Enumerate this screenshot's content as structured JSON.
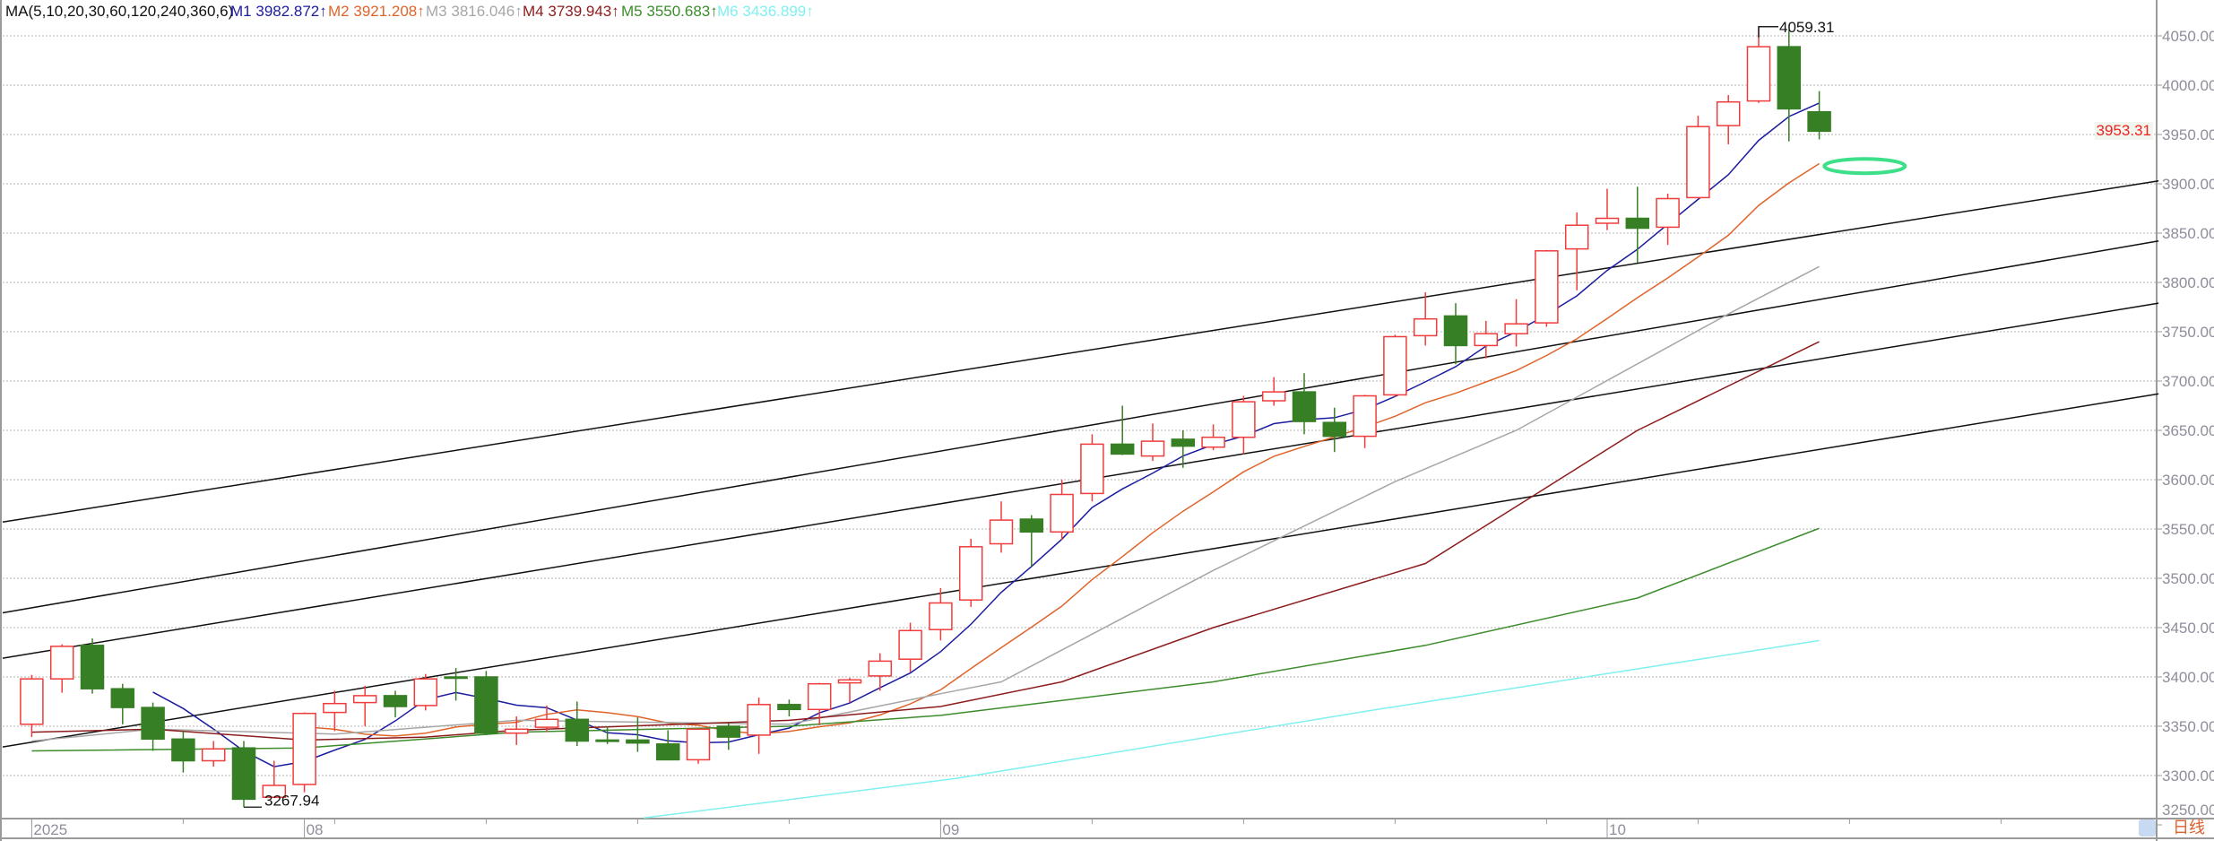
{
  "legend": {
    "title": "MA(5,10,20,30,60,120,240,360,6)",
    "items": [
      {
        "label": "M1",
        "value": "3982.872↑",
        "color": "#1c1ca0"
      },
      {
        "label": "M2",
        "value": "3921.208↑",
        "color": "#e0642a"
      },
      {
        "label": "M3",
        "value": "3816.046↑",
        "color": "#a6a6a6"
      },
      {
        "label": "M4",
        "value": "3739.943↑",
        "color": "#8c1c1c"
      },
      {
        "label": "M5",
        "value": "3550.683↑",
        "color": "#3c8c2c"
      },
      {
        "label": "M6",
        "value": "3436.899↑",
        "color": "#80f0f0"
      }
    ]
  },
  "period_label": "日线",
  "last_price_label": "3953.31",
  "chart_data": {
    "type": "candlestick",
    "ylim": [
      3250,
      4080
    ],
    "grid": true,
    "y_ticks": [
      "4050.00",
      "4000.00",
      "3950.00",
      "3900.00",
      "3850.00",
      "3800.00",
      "3750.00",
      "3700.00",
      "3650.00",
      "3600.00",
      "3550.00",
      "3500.00",
      "3450.00",
      "3400.00",
      "3350.00",
      "3300.00",
      "3250.00"
    ],
    "x_labels": [
      {
        "bar": 1,
        "label": "2025"
      },
      {
        "bar": 10,
        "label": "08"
      },
      {
        "bar": 31,
        "label": "09"
      },
      {
        "bar": 53,
        "label": "10"
      }
    ],
    "colors": {
      "up": "#f03c3c",
      "down": "#367f24",
      "trendline": "#111111",
      "highlight": "#3ddf88"
    },
    "ohlc_fields": [
      "open",
      "high",
      "low",
      "close"
    ],
    "candles": [
      [
        3352,
        3402,
        3339,
        3398
      ],
      [
        3398,
        3433,
        3384,
        3431
      ],
      [
        3432,
        3439,
        3383,
        3388
      ],
      [
        3388,
        3393,
        3352,
        3369
      ],
      [
        3369,
        3374,
        3325,
        3337
      ],
      [
        3337,
        3345,
        3303,
        3315
      ],
      [
        3315,
        3335,
        3309,
        3327
      ],
      [
        3328,
        3335,
        3267.94,
        3276
      ],
      [
        3278,
        3315,
        3278,
        3290
      ],
      [
        3291,
        3364,
        3283,
        3363
      ],
      [
        3364,
        3386,
        3345,
        3373
      ],
      [
        3374,
        3391,
        3350,
        3381
      ],
      [
        3381,
        3386,
        3359,
        3370
      ],
      [
        3371,
        3403,
        3366,
        3398
      ],
      [
        3400,
        3409,
        3376,
        3399
      ],
      [
        3400,
        3406,
        3341,
        3343
      ],
      [
        3343,
        3360,
        3331,
        3347
      ],
      [
        3349,
        3371,
        3344,
        3357
      ],
      [
        3357,
        3375,
        3330,
        3335
      ],
      [
        3336,
        3350,
        3332,
        3335
      ],
      [
        3336,
        3359,
        3324,
        3333
      ],
      [
        3332,
        3346,
        3316,
        3316
      ],
      [
        3316,
        3347,
        3312,
        3347
      ],
      [
        3350,
        3353,
        3326,
        3339
      ],
      [
        3341,
        3379,
        3322,
        3372
      ],
      [
        3372,
        3377,
        3360,
        3367
      ],
      [
        3367,
        3394,
        3351,
        3393
      ],
      [
        3394,
        3399,
        3374,
        3397
      ],
      [
        3401,
        3424,
        3386,
        3416
      ],
      [
        3418,
        3455,
        3405,
        3447
      ],
      [
        3448,
        3490,
        3437,
        3475
      ],
      [
        3478,
        3540,
        3471,
        3532
      ],
      [
        3535,
        3578,
        3526,
        3559
      ],
      [
        3560,
        3564,
        3512,
        3547
      ],
      [
        3547,
        3600,
        3539,
        3585
      ],
      [
        3586,
        3646,
        3578,
        3636
      ],
      [
        3636,
        3675,
        3625,
        3626
      ],
      [
        3624,
        3657,
        3619,
        3639
      ],
      [
        3641,
        3650,
        3612,
        3634
      ],
      [
        3633,
        3656,
        3630,
        3643
      ],
      [
        3643,
        3685,
        3626,
        3679
      ],
      [
        3680,
        3704,
        3675,
        3689
      ],
      [
        3689,
        3708,
        3646,
        3659
      ],
      [
        3658,
        3673,
        3628,
        3644
      ],
      [
        3644,
        3686,
        3632,
        3685
      ],
      [
        3686,
        3747,
        3684,
        3745
      ],
      [
        3746,
        3790,
        3736,
        3763
      ],
      [
        3766,
        3779,
        3717,
        3736
      ],
      [
        3736,
        3761,
        3723,
        3748
      ],
      [
        3748,
        3783,
        3735,
        3758
      ],
      [
        3759,
        3833,
        3755,
        3832
      ],
      [
        3834,
        3871,
        3792,
        3858
      ],
      [
        3860,
        3895,
        3853,
        3865
      ],
      [
        3865,
        3897,
        3820,
        3855
      ],
      [
        3856,
        3890,
        3838,
        3885
      ],
      [
        3886,
        3969,
        3886,
        3958
      ],
      [
        3959,
        3990,
        3940,
        3983
      ],
      [
        3984,
        4059.31,
        3982,
        4039
      ],
      [
        4039,
        4056,
        3943,
        3976
      ],
      [
        3973,
        3994,
        3945,
        3953.31
      ]
    ],
    "annotations": [
      {
        "bar": 58,
        "price": 4059.31,
        "label": "4059.31"
      },
      {
        "bar": 8,
        "price": 3267.94,
        "label": "3267.94"
      }
    ],
    "moving_averages": [
      {
        "name": "M1",
        "period": 5,
        "color": "#1c1ca0"
      },
      {
        "name": "M2",
        "period": 10,
        "color": "#e0642a"
      },
      {
        "name": "M3",
        "color": "#a6a6a6",
        "points": [
          [
            1,
            3335
          ],
          [
            5,
            3347
          ],
          [
            11,
            3342
          ],
          [
            17,
            3356
          ],
          [
            26,
            3352
          ],
          [
            31,
            3383
          ],
          [
            33,
            3395
          ],
          [
            40,
            3508
          ],
          [
            46,
            3598
          ],
          [
            50,
            3650
          ],
          [
            57,
            3768
          ],
          [
            60,
            3816.046
          ]
        ]
      },
      {
        "name": "M4",
        "color": "#8c1c1c",
        "points": [
          [
            1,
            3344
          ],
          [
            5,
            3347
          ],
          [
            10,
            3336
          ],
          [
            14,
            3339
          ],
          [
            17,
            3346
          ],
          [
            26,
            3356
          ],
          [
            31,
            3370
          ],
          [
            35,
            3395
          ],
          [
            40,
            3450
          ],
          [
            47,
            3515
          ],
          [
            54,
            3650
          ],
          [
            60,
            3739.943
          ]
        ]
      },
      {
        "name": "M5",
        "color": "#3c8c2c",
        "points": [
          [
            1,
            3325
          ],
          [
            10,
            3328
          ],
          [
            17,
            3344
          ],
          [
            26,
            3350
          ],
          [
            31,
            3361
          ],
          [
            40,
            3395
          ],
          [
            47,
            3432
          ],
          [
            54,
            3480
          ],
          [
            60,
            3550.683
          ]
        ]
      },
      {
        "name": "M6",
        "color": "#80f0f0",
        "points": [
          [
            21.2,
            3257
          ],
          [
            31.5,
            3297
          ],
          [
            45,
            3365
          ],
          [
            60,
            3436.899
          ]
        ]
      }
    ],
    "trendlines": [
      {
        "from": {
          "bar": 0.04,
          "price": 3557
        },
        "to": {
          "bar": 71.2,
          "price": 3903
        }
      },
      {
        "from": {
          "bar": 0.04,
          "price": 3465
        },
        "to": {
          "bar": 71.2,
          "price": 3842
        }
      },
      {
        "from": {
          "bar": 0.04,
          "price": 3419
        },
        "to": {
          "bar": 71.2,
          "price": 3779
        }
      },
      {
        "from": {
          "bar": 0.04,
          "price": 3329
        },
        "to": {
          "bar": 71.2,
          "price": 3687
        }
      }
    ],
    "highlight_ellipse": {
      "bar": 61.5,
      "price": 3918
    }
  }
}
